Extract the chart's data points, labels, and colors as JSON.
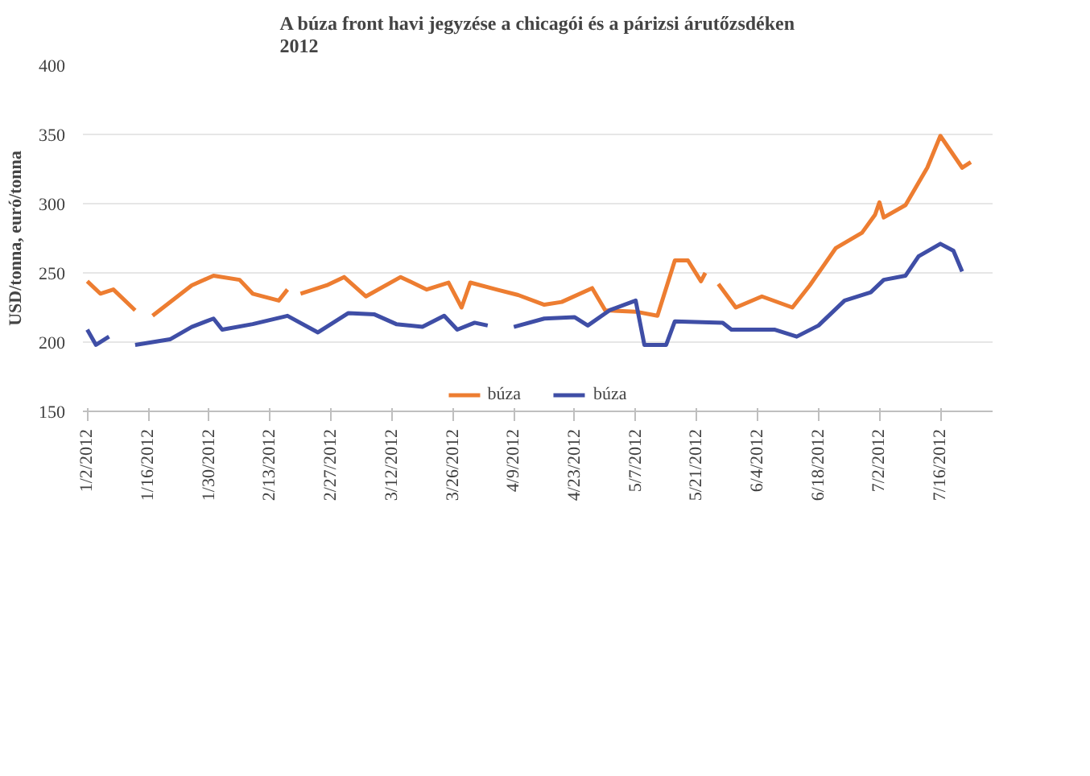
{
  "chart_data": {
    "type": "line",
    "title": "A búza front havi jegyzése a chicagói és a párizsi árutőzsdéken\n2012",
    "ylabel": "USD/tonna, euró/tonna",
    "xlim": [
      "2012-01-01",
      "2012-07-28"
    ],
    "ylim": [
      150,
      400
    ],
    "yticks": [
      150,
      200,
      250,
      300,
      350,
      400
    ],
    "xticks": [
      {
        "value": "2012-01-02",
        "label": "1/2/2012"
      },
      {
        "value": "2012-01-16",
        "label": "1/16/2012"
      },
      {
        "value": "2012-01-30",
        "label": "1/30/2012"
      },
      {
        "value": "2012-02-13",
        "label": "2/13/2012"
      },
      {
        "value": "2012-02-27",
        "label": "2/27/2012"
      },
      {
        "value": "2012-03-12",
        "label": "3/12/2012"
      },
      {
        "value": "2012-03-26",
        "label": "3/26/2012"
      },
      {
        "value": "2012-04-09",
        "label": "4/9/2012"
      },
      {
        "value": "2012-04-23",
        "label": "4/23/2012"
      },
      {
        "value": "2012-05-07",
        "label": "5/7/2012"
      },
      {
        "value": "2012-05-21",
        "label": "5/21/2012"
      },
      {
        "value": "2012-06-04",
        "label": "6/4/2012"
      },
      {
        "value": "2012-06-18",
        "label": "6/18/2012"
      },
      {
        "value": "2012-07-02",
        "label": "7/2/2012"
      },
      {
        "value": "2012-07-16",
        "label": "7/16/2012"
      }
    ],
    "grid": "y",
    "legend": "bottom",
    "marker": "none",
    "line_style": "solid",
    "series": [
      {
        "name": "búza",
        "color": "#ed7d31",
        "x": [
          "2012-01-02",
          "2012-01-05",
          "2012-01-08",
          "2012-01-13",
          "2012-01-15",
          "2012-01-17",
          "2012-01-26",
          "2012-01-31",
          "2012-02-06",
          "2012-02-09",
          "2012-02-15",
          "2012-02-17",
          "2012-02-18",
          "2012-02-20",
          "2012-02-26",
          "2012-03-01",
          "2012-03-06",
          "2012-03-14",
          "2012-03-20",
          "2012-03-25",
          "2012-03-28",
          "2012-03-30",
          "2012-04-05",
          "2012-04-10",
          "2012-04-16",
          "2012-04-20",
          "2012-04-27",
          "2012-04-30",
          "2012-05-07",
          "2012-05-12",
          "2012-05-16",
          "2012-05-19",
          "2012-05-22",
          "2012-05-23",
          "2012-05-24",
          "2012-05-26",
          "2012-05-30",
          "2012-06-05",
          "2012-06-12",
          "2012-06-16",
          "2012-06-22",
          "2012-06-28",
          "2012-07-01",
          "2012-07-02",
          "2012-07-03",
          "2012-07-08",
          "2012-07-13",
          "2012-07-16",
          "2012-07-21",
          "2012-07-23"
        ],
        "values": [
          244,
          235,
          238,
          223,
          null,
          219,
          241,
          248,
          245,
          235,
          230,
          238,
          null,
          235,
          241,
          247,
          233,
          247,
          238,
          243,
          225,
          243,
          238,
          234,
          227,
          229,
          239,
          223,
          222,
          219,
          259,
          259,
          244,
          250,
          null,
          242,
          225,
          233,
          225,
          241,
          268,
          279,
          292,
          301,
          290,
          299,
          326,
          349,
          326,
          330
        ]
      },
      {
        "name": "búza",
        "color": "#3f4ea6",
        "x": [
          "2012-01-02",
          "2012-01-04",
          "2012-01-07",
          "2012-01-10",
          "2012-01-13",
          "2012-01-21",
          "2012-01-26",
          "2012-01-31",
          "2012-02-02",
          "2012-02-09",
          "2012-02-17",
          "2012-02-24",
          "2012-03-02",
          "2012-03-08",
          "2012-03-13",
          "2012-03-19",
          "2012-03-24",
          "2012-03-27",
          "2012-03-31",
          "2012-04-03",
          "2012-04-06",
          "2012-04-09",
          "2012-04-16",
          "2012-04-23",
          "2012-04-26",
          "2012-05-01",
          "2012-05-07",
          "2012-05-09",
          "2012-05-14",
          "2012-05-16",
          "2012-05-27",
          "2012-05-29",
          "2012-06-08",
          "2012-06-13",
          "2012-06-18",
          "2012-06-24",
          "2012-06-30",
          "2012-07-03",
          "2012-07-08",
          "2012-07-11",
          "2012-07-16",
          "2012-07-19",
          "2012-07-21"
        ],
        "values": [
          209,
          198,
          204,
          null,
          198,
          202,
          211,
          217,
          209,
          213,
          219,
          207,
          221,
          220,
          213,
          211,
          219,
          209,
          214,
          212,
          null,
          211,
          217,
          218,
          212,
          223,
          230,
          198,
          198,
          215,
          214,
          209,
          209,
          204,
          212,
          230,
          236,
          245,
          248,
          262,
          271,
          266,
          251
        ]
      }
    ]
  }
}
